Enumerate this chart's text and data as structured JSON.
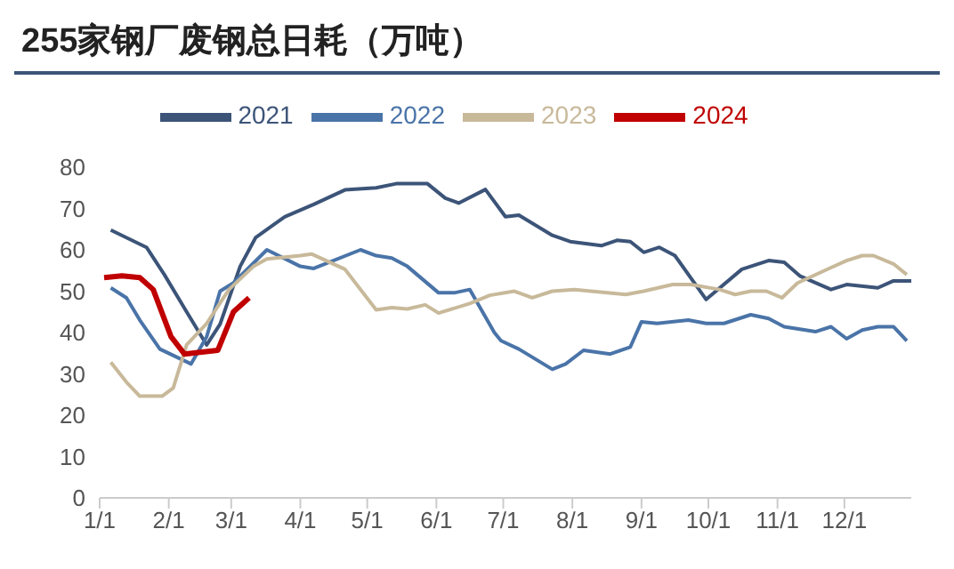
{
  "chart_data": {
    "type": "line",
    "title": "255家钢厂废钢总日耗（万吨）",
    "xlim": [
      "--01-01",
      "--12-31"
    ],
    "xticks": [
      {
        "value": "--01-01",
        "label": "1/1"
      },
      {
        "value": "--02-01",
        "label": "2/1"
      },
      {
        "value": "--03-01",
        "label": "3/1"
      },
      {
        "value": "--04-01",
        "label": "4/1"
      },
      {
        "value": "--05-01",
        "label": "5/1"
      },
      {
        "value": "--06-01",
        "label": "6/1"
      },
      {
        "value": "--07-01",
        "label": "7/1"
      },
      {
        "value": "--08-01",
        "label": "8/1"
      },
      {
        "value": "--09-01",
        "label": "9/1"
      },
      {
        "value": "--10-01",
        "label": "10/1"
      },
      {
        "value": "--11-01",
        "label": "11/1"
      },
      {
        "value": "--12-01",
        "label": "12/1"
      }
    ],
    "ylim": [
      0,
      80
    ],
    "yticks": [
      0,
      10,
      20,
      30,
      40,
      50,
      60,
      70,
      80
    ],
    "grid": false,
    "legend": "top",
    "marker": "none",
    "line_style": "solid",
    "series": [
      {
        "name": "2021",
        "color": "#3c5478",
        "x": [
          "--01-06",
          "--01-22",
          "--01-30",
          "--02-09",
          "--02-18",
          "--02-24",
          "--03-05",
          "--03-12",
          "--03-25",
          "--04-07",
          "--04-21",
          "--05-05",
          "--05-14",
          "--05-28",
          "--06-05",
          "--06-11",
          "--06-23",
          "--07-02",
          "--07-08",
          "--07-23",
          "--07-31",
          "--08-14",
          "--08-21",
          "--08-27",
          "--09-02",
          "--09-09",
          "--09-16",
          "--09-30",
          "--10-16",
          "--10-28",
          "--11-04",
          "--11-11",
          "--11-25",
          "--12-02",
          "--12-16",
          "--12-23",
          "--12-31"
        ],
        "values": [
          64.8,
          60.6,
          54,
          45,
          37,
          42,
          56,
          63,
          68,
          71,
          74.5,
          75,
          76,
          76,
          72.5,
          71.3,
          74.6,
          68,
          68.4,
          63.5,
          62,
          61,
          62.3,
          62,
          59.4,
          60.6,
          58.6,
          48,
          55.3,
          57.4,
          57,
          53.7,
          50.4,
          51.6,
          50.8,
          52.5,
          52.5
        ]
      },
      {
        "name": "2022",
        "color": "#4a74a8",
        "x": [
          "--01-06",
          "--01-13",
          "--01-19",
          "--01-28",
          "--02-11",
          "--02-18",
          "--02-24",
          "--03-02",
          "--03-17",
          "--04-01",
          "--04-07",
          "--04-28",
          "--05-05",
          "--05-12",
          "--05-19",
          "--06-02",
          "--06-09",
          "--06-16",
          "--06-27",
          "--06-30",
          "--07-08",
          "--07-23",
          "--07-29",
          "--08-06",
          "--08-18",
          "--08-27",
          "--09-01",
          "--09-08",
          "--09-22",
          "--09-30",
          "--10-08",
          "--10-20",
          "--10-28",
          "--11-04",
          "--11-18",
          "--11-25",
          "--12-02",
          "--12-09",
          "--12-16",
          "--12-23",
          "--12-29"
        ],
        "values": [
          50.8,
          48.4,
          43,
          36,
          32.4,
          39,
          50,
          52,
          60,
          56,
          55.5,
          60,
          58.6,
          58,
          56,
          49.6,
          49.6,
          50.4,
          40,
          38,
          36,
          31.1,
          32.4,
          35.7,
          34.8,
          36.5,
          42.6,
          42.2,
          43,
          42.2,
          42.2,
          44.3,
          43.4,
          41.4,
          40.2,
          41.4,
          38.5,
          40.6,
          41.4,
          41.4,
          38
        ]
      },
      {
        "name": "2023",
        "color": "#c8b99a",
        "x": [
          "--01-06",
          "--01-13",
          "--01-19",
          "--01-29",
          "--02-03",
          "--02-09",
          "--02-18",
          "--02-28",
          "--03-11",
          "--03-17",
          "--04-01",
          "--04-06",
          "--04-21",
          "--05-05",
          "--05-12",
          "--05-19",
          "--05-27",
          "--06-02",
          "--06-16",
          "--06-25",
          "--07-06",
          "--07-14",
          "--07-23",
          "--08-02",
          "--08-25",
          "--09-02",
          "--09-15",
          "--09-23",
          "--10-06",
          "--10-13",
          "--10-20",
          "--10-27",
          "--11-03",
          "--11-10",
          "--11-25",
          "--12-02",
          "--12-09",
          "--12-14",
          "--12-23",
          "--12-29"
        ],
        "values": [
          32.8,
          28,
          24.6,
          24.6,
          26.6,
          37,
          42.2,
          50.4,
          56,
          57.8,
          58.6,
          59,
          55.3,
          45.5,
          46,
          45.7,
          46.7,
          44.7,
          47,
          49,
          50,
          48.4,
          50,
          50.4,
          49.2,
          50,
          51.6,
          51.6,
          50.4,
          49.2,
          50,
          50,
          48.4,
          52,
          55.7,
          57.4,
          58.6,
          58.6,
          56.6,
          54
        ]
      },
      {
        "name": "2024",
        "color": "#c00000",
        "x": [
          "--01-03",
          "--01-11",
          "--01-19",
          "--01-25",
          "--02-02",
          "--02-08",
          "--02-23",
          "--03-02",
          "--03-09"
        ],
        "values": [
          53.3,
          53.7,
          53.3,
          50.4,
          39,
          34.8,
          35.7,
          45,
          48.4
        ]
      }
    ]
  }
}
